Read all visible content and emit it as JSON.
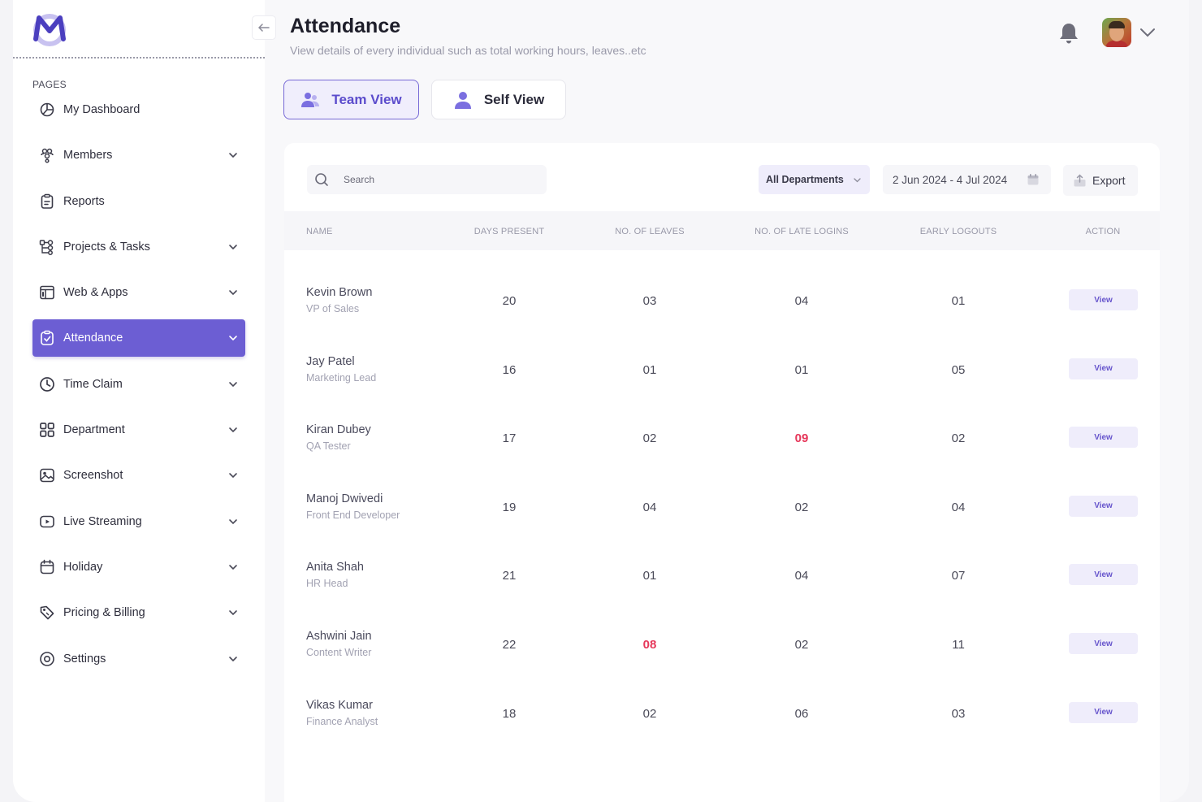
{
  "colors": {
    "accent": "#6c5ed3",
    "accent_light": "#efedfb",
    "danger": "#e6375a"
  },
  "sidebar": {
    "section_label": "PAGES",
    "items": [
      {
        "label": "My Dashboard",
        "icon": "dashboard-icon",
        "has_chevron": false
      },
      {
        "label": "Members",
        "icon": "members-icon",
        "has_chevron": true
      },
      {
        "label": "Reports",
        "icon": "reports-icon",
        "has_chevron": false
      },
      {
        "label": "Projects & Tasks",
        "icon": "projects-icon",
        "has_chevron": true
      },
      {
        "label": "Web & Apps",
        "icon": "web-apps-icon",
        "has_chevron": true
      },
      {
        "label": "Attendance",
        "icon": "attendance-icon",
        "has_chevron": true,
        "active": true
      },
      {
        "label": "Time Claim",
        "icon": "clock-icon",
        "has_chevron": true
      },
      {
        "label": "Department",
        "icon": "grid-icon",
        "has_chevron": true
      },
      {
        "label": "Screenshot",
        "icon": "image-icon",
        "has_chevron": true
      },
      {
        "label": "Live Streaming",
        "icon": "play-icon",
        "has_chevron": true
      },
      {
        "label": "Holiday",
        "icon": "calendar-icon",
        "has_chevron": true
      },
      {
        "label": "Pricing & Billing",
        "icon": "tag-icon",
        "has_chevron": true
      },
      {
        "label": "Settings",
        "icon": "settings-icon",
        "has_chevron": true
      }
    ]
  },
  "header": {
    "title": "Attendance",
    "subtitle": "View details of every individual such as total working hours, leaves..etc"
  },
  "views": {
    "team_label": "Team View",
    "self_label": "Self View",
    "selected": "team"
  },
  "toolbar": {
    "search_placeholder": "Search",
    "department_label": "All Departments",
    "date_range": "2 Jun 2024 - 4 Jul 2024",
    "export_label": "Export"
  },
  "table": {
    "columns": [
      "NAME",
      "DAYS PRESENT",
      "NO. OF LEAVES",
      "NO. OF LATE LOGINS",
      "EARLY LOGOUTS",
      "ACTION"
    ],
    "action_label": "View",
    "rows": [
      {
        "name": "Kevin Brown",
        "role": "VP of Sales",
        "days_present": "20",
        "leaves": "03",
        "late_logins": "04",
        "early_logouts": "01"
      },
      {
        "name": "Jay Patel",
        "role": "Marketing Lead",
        "days_present": "16",
        "leaves": "01",
        "late_logins": "01",
        "early_logouts": "05"
      },
      {
        "name": "Kiran Dubey",
        "role": "QA Tester",
        "days_present": "17",
        "leaves": "02",
        "late_logins": "09",
        "early_logouts": "02",
        "highlight": "late_logins"
      },
      {
        "name": "Manoj Dwivedi",
        "role": "Front End Developer",
        "days_present": "19",
        "leaves": "04",
        "late_logins": "02",
        "early_logouts": "04"
      },
      {
        "name": "Anita Shah",
        "role": "HR Head",
        "days_present": "21",
        "leaves": "01",
        "late_logins": "04",
        "early_logouts": "07"
      },
      {
        "name": "Ashwini Jain",
        "role": "Content Writer",
        "days_present": "22",
        "leaves": "08",
        "late_logins": "02",
        "early_logouts": "11",
        "highlight": "leaves"
      },
      {
        "name": "Vikas Kumar",
        "role": "Finance Analyst",
        "days_present": "18",
        "leaves": "02",
        "late_logins": "06",
        "early_logouts": "03"
      }
    ]
  }
}
